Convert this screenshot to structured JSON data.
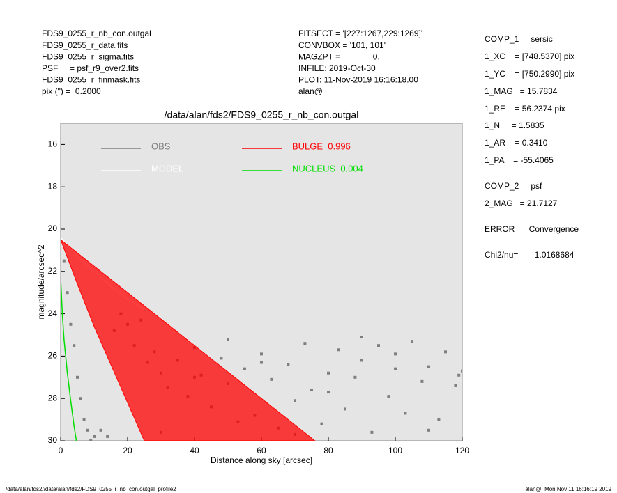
{
  "header_left": [
    "FDS9_0255_r_nb_con.outgal",
    "FDS9_0255_r_data.fits",
    "FDS9_0255_r_sigma.fits",
    "PSF     = psf_r9_over2.fits",
    "FDS9_0255_r_finmask.fits",
    "pix (\") =  0.2000"
  ],
  "header_middle": [
    "FITSECT = '[227:1267,229:1269]'",
    "CONVBOX = '101, 101'",
    "MAGZPT =              0.",
    "INFILE: 2019-Oct-30",
    "PLOT: 11-Nov-2019 16:16:18.00",
    "alan@"
  ],
  "params": [
    "COMP_1  = sersic",
    "1_XC    = [748.5370] pix",
    "1_YC    = [750.2990] pix",
    "1_MAG   = 15.7834",
    "1_RE    = 56.2374 pix",
    "1_N     = 1.5835",
    "1_AR    = 0.3410",
    "1_PA    = -55.4065",
    "COMP_2  = psf",
    "2_MAG   = 21.7127",
    "ERROR   = Convergence",
    "Chi2/nu=       1.0168684"
  ],
  "footer_left": "/data/alan/fds2//data/alan/fds2/FDS9_0255_r_nb_con.outgal_profile2",
  "footer_right": "alan@  Mon Nov 11 16:16:19 2019",
  "chart_data": {
    "type": "profile",
    "title": "/data/alan/fds2/FDS9_0255_r_nb_con.outgal",
    "x_label": "Distance along sky [arcsec]",
    "y_label": "magnitude/arcsec^2",
    "xlim": [
      0,
      120
    ],
    "xticks": [
      0,
      20,
      40,
      60,
      80,
      100,
      120
    ],
    "ylim": [
      30,
      15
    ],
    "yticks": [
      16,
      18,
      20,
      22,
      24,
      26,
      28,
      30
    ],
    "series": [
      {
        "name": "OBS",
        "color": "#7f7f7f",
        "kind": "scatter",
        "x": [
          1,
          2,
          3,
          4,
          5,
          6,
          7,
          8,
          9,
          10,
          12,
          14,
          16,
          18,
          20,
          22,
          24,
          26,
          28,
          30,
          32,
          35,
          38,
          40,
          42,
          45,
          48,
          50,
          53,
          55,
          58,
          60,
          63,
          65,
          68,
          70,
          73,
          75,
          78,
          80,
          83,
          85,
          88,
          90,
          93,
          95,
          98,
          100,
          103,
          105,
          108,
          110,
          113,
          115,
          118,
          119,
          30,
          50,
          70,
          90,
          110,
          40,
          60,
          80,
          100,
          120
        ],
        "values": [
          21.5,
          23,
          24.5,
          25.5,
          27,
          28,
          29,
          29.5,
          30,
          29.8,
          29.5,
          29.8,
          24.8,
          24.0,
          24.5,
          25.5,
          24.3,
          26.3,
          25.8,
          26.8,
          27.5,
          26.2,
          27.9,
          25.6,
          26.9,
          28.4,
          26.1,
          27.3,
          29.1,
          26.6,
          28.8,
          25.9,
          27.1,
          29.4,
          26.4,
          28.1,
          25.4,
          27.6,
          29.2,
          26.8,
          25.7,
          28.5,
          27.0,
          26.2,
          29.6,
          25.5,
          27.9,
          26.6,
          28.7,
          25.3,
          27.2,
          26.5,
          29.0,
          25.8,
          27.4,
          26.9,
          29.6,
          25.2,
          29.7,
          25.1,
          29.5,
          27.0,
          26.3,
          27.7,
          25.9,
          26.7
        ]
      },
      {
        "name": "MODEL",
        "color": "#ffffff",
        "kind": "line",
        "x": [
          0,
          5,
          10,
          15,
          20,
          25
        ],
        "values": [
          20.4,
          21.3,
          22.0,
          22.7,
          23.3,
          23.8
        ]
      },
      {
        "name": "BULGE  0.996",
        "color": "#ff0000",
        "kind": "area",
        "x": [
          0,
          20,
          40,
          60,
          76,
          25,
          20,
          15,
          10,
          5,
          0
        ],
        "values": [
          20.5,
          23,
          25.5,
          28,
          30,
          30,
          28.2,
          26.4,
          24.6,
          22.6,
          20.5
        ]
      },
      {
        "name": "NUCLEUS  0.004",
        "color": "#00dd00",
        "kind": "line",
        "x": [
          0,
          0.5,
          1,
          2,
          3,
          4,
          4.7
        ],
        "values": [
          22.3,
          24,
          25.2,
          26.8,
          28.1,
          29.3,
          30
        ]
      }
    ]
  }
}
